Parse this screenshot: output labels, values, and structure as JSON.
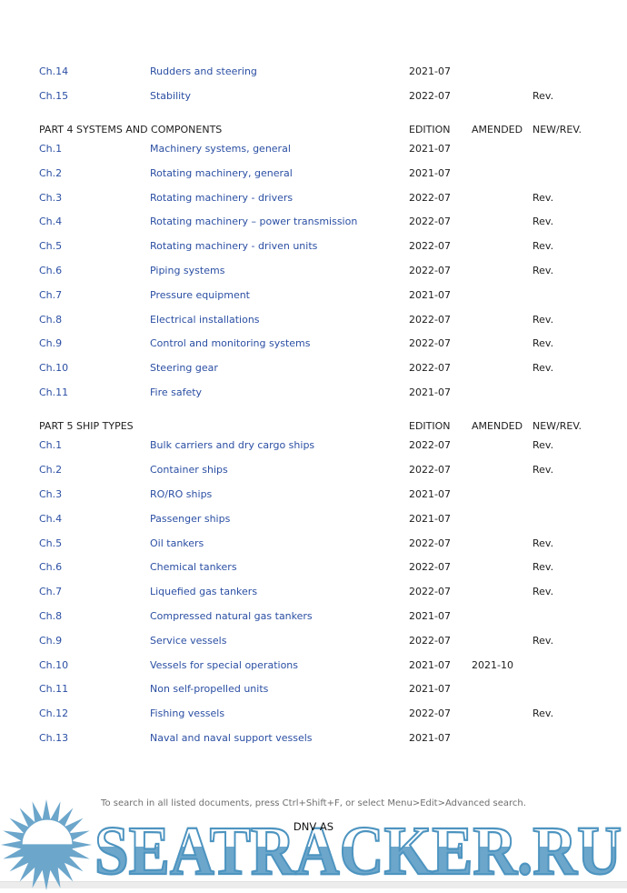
{
  "toc": {
    "columns": {
      "edition": "EDITION",
      "amended": "AMENDED",
      "newrev": "NEW/REV."
    },
    "continued_rows": [
      {
        "ch": "Ch.14",
        "title": "Rudders and steering",
        "edition": "2021-07",
        "amended": "",
        "newrev": ""
      },
      {
        "ch": "Ch.15",
        "title": "Stability",
        "edition": "2022-07",
        "amended": "",
        "newrev": "Rev."
      }
    ],
    "sections": [
      {
        "part_title": "PART 4 SYSTEMS AND COMPONENTS",
        "rows": [
          {
            "ch": "Ch.1",
            "title": "Machinery systems, general",
            "edition": "2021-07",
            "amended": "",
            "newrev": ""
          },
          {
            "ch": "Ch.2",
            "title": "Rotating machinery, general",
            "edition": "2021-07",
            "amended": "",
            "newrev": ""
          },
          {
            "ch": "Ch.3",
            "title": "Rotating machinery - drivers",
            "edition": "2022-07",
            "amended": "",
            "newrev": "Rev."
          },
          {
            "ch": "Ch.4",
            "title": "Rotating machinery – power transmission",
            "edition": "2022-07",
            "amended": "",
            "newrev": "Rev."
          },
          {
            "ch": "Ch.5",
            "title": "Rotating machinery - driven units",
            "edition": "2022-07",
            "amended": "",
            "newrev": "Rev."
          },
          {
            "ch": "Ch.6",
            "title": "Piping systems",
            "edition": "2022-07",
            "amended": "",
            "newrev": "Rev."
          },
          {
            "ch": "Ch.7",
            "title": "Pressure equipment",
            "edition": "2021-07",
            "amended": "",
            "newrev": ""
          },
          {
            "ch": "Ch.8",
            "title": "Electrical installations",
            "edition": "2022-07",
            "amended": "",
            "newrev": "Rev."
          },
          {
            "ch": "Ch.9",
            "title": "Control and monitoring systems",
            "edition": "2022-07",
            "amended": "",
            "newrev": "Rev."
          },
          {
            "ch": "Ch.10",
            "title": "Steering gear",
            "edition": "2022-07",
            "amended": "",
            "newrev": "Rev."
          },
          {
            "ch": "Ch.11",
            "title": "Fire safety",
            "edition": "2021-07",
            "amended": "",
            "newrev": ""
          }
        ]
      },
      {
        "part_title": "PART 5 SHIP TYPES",
        "rows": [
          {
            "ch": "Ch.1",
            "title": "Bulk carriers and dry cargo ships",
            "edition": "2022-07",
            "amended": "",
            "newrev": "Rev."
          },
          {
            "ch": "Ch.2",
            "title": "Container ships",
            "edition": "2022-07",
            "amended": "",
            "newrev": "Rev."
          },
          {
            "ch": "Ch.3",
            "title": "RO/RO ships",
            "edition": "2021-07",
            "amended": "",
            "newrev": ""
          },
          {
            "ch": "Ch.4",
            "title": "Passenger ships",
            "edition": "2021-07",
            "amended": "",
            "newrev": ""
          },
          {
            "ch": "Ch.5",
            "title": "Oil tankers",
            "edition": "2022-07",
            "amended": "",
            "newrev": "Rev."
          },
          {
            "ch": "Ch.6",
            "title": "Chemical tankers",
            "edition": "2022-07",
            "amended": "",
            "newrev": "Rev."
          },
          {
            "ch": "Ch.7",
            "title": "Liquefied gas tankers",
            "edition": "2022-07",
            "amended": "",
            "newrev": "Rev."
          },
          {
            "ch": "Ch.8",
            "title": "Compressed natural gas tankers",
            "edition": "2021-07",
            "amended": "",
            "newrev": ""
          },
          {
            "ch": "Ch.9",
            "title": "Service vessels",
            "edition": "2022-07",
            "amended": "",
            "newrev": "Rev."
          },
          {
            "ch": "Ch.10",
            "title": "Vessels for special operations",
            "edition": "2021-07",
            "amended": "2021-10",
            "newrev": ""
          },
          {
            "ch": "Ch.11",
            "title": "Non self-propelled units",
            "edition": "2021-07",
            "amended": "",
            "newrev": ""
          },
          {
            "ch": "Ch.12",
            "title": "Fishing vessels",
            "edition": "2022-07",
            "amended": "",
            "newrev": "Rev."
          },
          {
            "ch": "Ch.13",
            "title": "Naval and naval support vessels",
            "edition": "2021-07",
            "amended": "",
            "newrev": ""
          }
        ]
      }
    ]
  },
  "footer": {
    "search_hint": "To search in all listed documents, press Ctrl+Shift+F, or select Menu>Edit>Advanced search.",
    "publisher": "DNV AS"
  },
  "watermark": {
    "text": "SEATRACKER.RU",
    "logo": "sun-logo",
    "blue": "#6ca6cb",
    "outline": "#4d94c0"
  }
}
